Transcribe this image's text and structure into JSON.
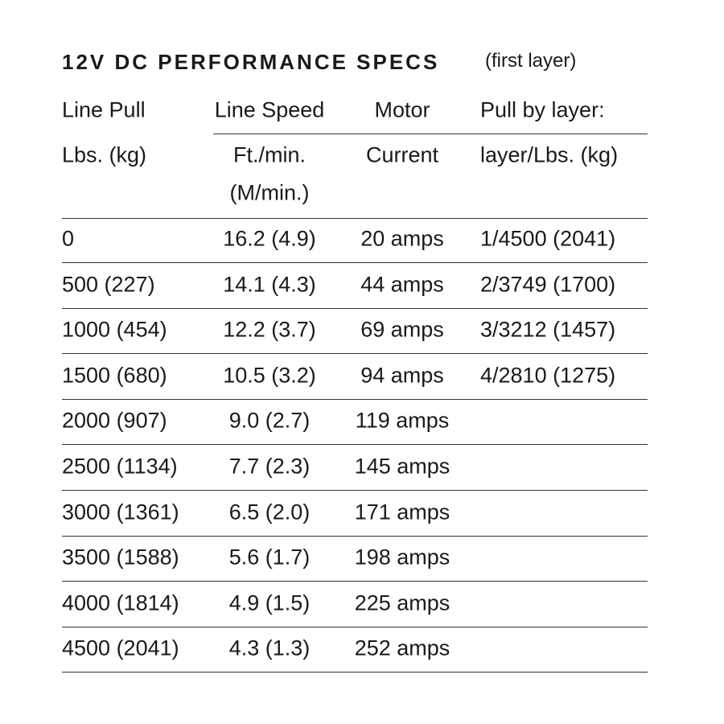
{
  "title": "12V DC PERFORMANCE SPECS",
  "subtitle": "(first layer)",
  "table": {
    "header": [
      [
        "Line Pull",
        "Line Speed",
        "Motor",
        "Pull by layer:"
      ],
      [
        "Lbs. (kg)",
        "Ft./min.",
        "Current",
        "layer/Lbs. (kg)"
      ]
    ],
    "header_extra": "(M/min.)",
    "rows": [
      [
        "0",
        "16.2 (4.9)",
        "20 amps",
        "1/4500 (2041)"
      ],
      [
        "500 (227)",
        "14.1 (4.3)",
        "44 amps",
        "2/3749 (1700)"
      ],
      [
        "1000 (454)",
        "12.2 (3.7)",
        "69 amps",
        "3/3212 (1457)"
      ],
      [
        "1500 (680)",
        "10.5 (3.2)",
        "94 amps",
        "4/2810 (1275)"
      ],
      [
        "2000 (907)",
        "9.0 (2.7)",
        "119 amps"
      ],
      [
        "2500 (1134)",
        "7.7 (2.3)",
        "145 amps"
      ],
      [
        "3000 (1361)",
        "6.5 (2.0)",
        "171 amps"
      ],
      [
        "3500 (1588)",
        "5.6 (1.7)",
        "198 amps"
      ],
      [
        "4000 (1814)",
        "4.9 (1.5)",
        "225 amps"
      ],
      [
        "4500 (2041)",
        "4.3 (1.3)",
        "252 amps"
      ]
    ]
  }
}
